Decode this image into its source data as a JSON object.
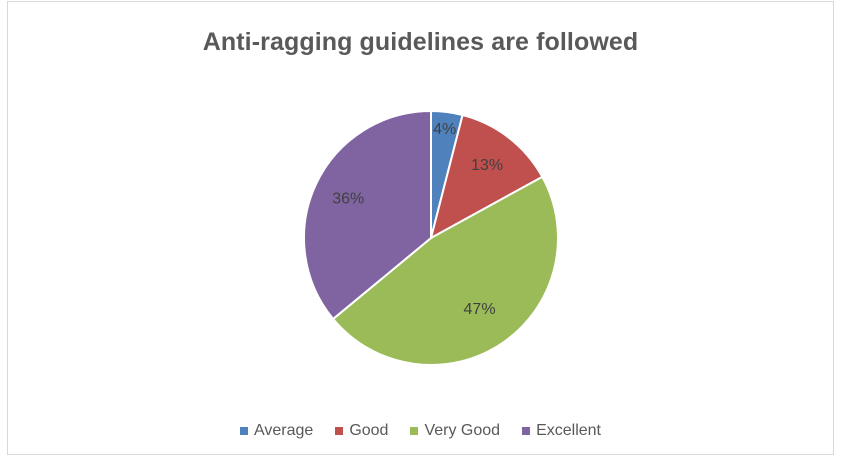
{
  "chart_data": {
    "type": "pie",
    "title": "Anti-ragging guidelines are followed",
    "categories": [
      "Average",
      "Good",
      "Very Good",
      "Excellent"
    ],
    "values": [
      4,
      13,
      47,
      36
    ],
    "labels": [
      "4%",
      "13%",
      "47%",
      "36%"
    ],
    "colors": [
      "#4f81bd",
      "#c0504d",
      "#9bbb59",
      "#8064a2"
    ],
    "legend_position": "bottom"
  }
}
